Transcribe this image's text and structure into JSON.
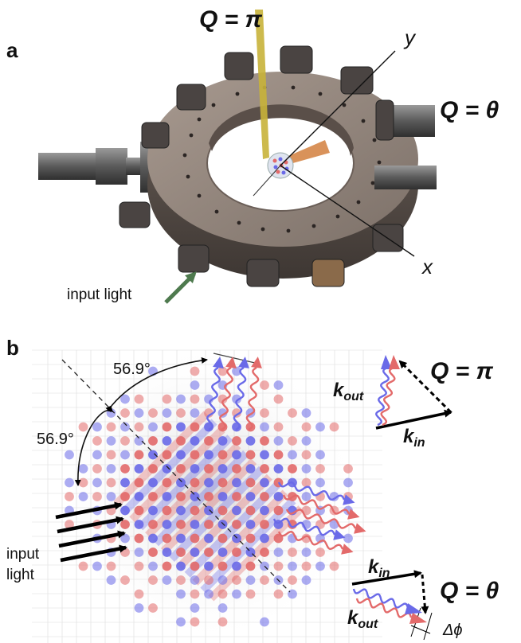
{
  "panel_a": {
    "label": "a",
    "q_pi": "Q = π",
    "q_theta": "Q = θ",
    "axis_y": "y",
    "axis_x": "x",
    "input_light": "input light"
  },
  "panel_b": {
    "label": "b",
    "angle_top": "56.9°",
    "angle_left": "56.9°",
    "input_light_line1": "input",
    "input_light_line2": "light",
    "k_out": "k",
    "k_out_sub": "out",
    "k_in": "k",
    "k_in_sub": "in",
    "q_pi": "Q = π",
    "k_in_2": "k",
    "k_in_2_sub": "in",
    "k_out_2": "k",
    "k_out_2_sub": "out",
    "q_theta": "Q = θ",
    "delta_phi": "Δϕ"
  },
  "colors": {
    "red_atom": "#e36a6a",
    "blue_atom": "#6a6ae8",
    "chamber": "#8a7d74",
    "beam_gold": "#c8b23a",
    "beam_copper": "#d9925a",
    "arrow_green": "#4e7a4e"
  }
}
